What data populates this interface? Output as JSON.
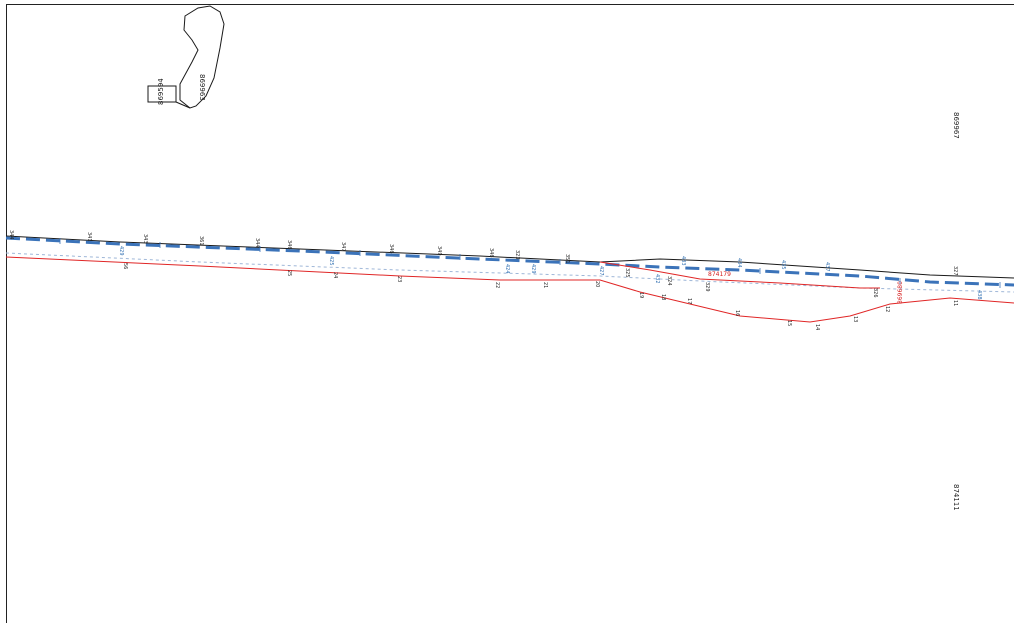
{
  "map": {
    "parcels": {
      "p1": "869963",
      "p2": "869594",
      "p3": "869967",
      "p4": "874111",
      "p5": "869680",
      "p6": "874179"
    },
    "colors": {
      "black_line": "#1a1a1a",
      "blue_line": "#3b73b9",
      "red_line": "#e02626",
      "frame": "#222222"
    },
    "top_labels": [
      "344",
      "341",
      "343",
      "361",
      "344",
      "346",
      "347",
      "346",
      "349",
      "346",
      "323",
      "351",
      "325",
      "324",
      "329",
      "326",
      "327"
    ],
    "blue_labels": [
      "429",
      "425",
      "424",
      "429",
      "427",
      "432",
      "433",
      "434",
      "435",
      "437",
      "438"
    ],
    "bottom_labels": [
      "56",
      "25",
      "24",
      "23",
      "22",
      "21",
      "20",
      "19",
      "18",
      "17",
      "16",
      "15",
      "14",
      "13",
      "12",
      "11"
    ]
  }
}
